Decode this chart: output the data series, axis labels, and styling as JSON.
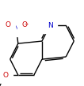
{
  "bg_color": "#ffffff",
  "bond_color": "#000000",
  "atom_colors": {
    "N": "#0000cd",
    "O": "#cc0000",
    "C": "#000000"
  },
  "bond_width": 1.0,
  "font_size": 6.5,
  "figsize": [
    1.06,
    1.09
  ],
  "dpi": 100,
  "blen": 0.19
}
